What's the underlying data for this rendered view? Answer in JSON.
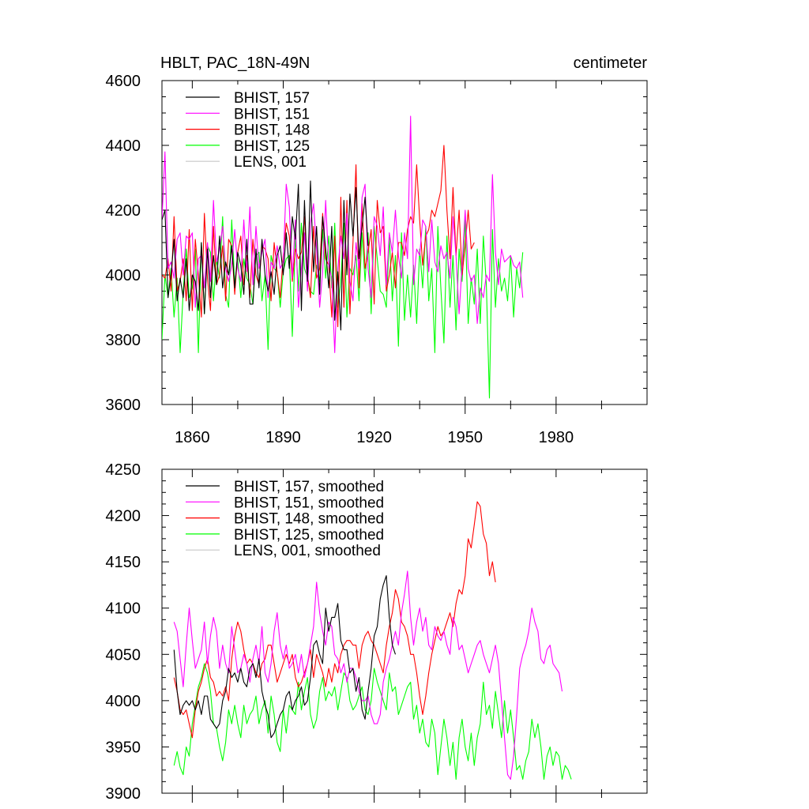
{
  "header": {
    "title": "HBLT, PAC_18N-49N",
    "units": "centimeter"
  },
  "colors": {
    "BHIST_157": "#000000",
    "BHIST_151": "#ff00ff",
    "BHIST_148": "#ff0000",
    "BHIST_125": "#00ff00",
    "LENS_001": "#c8c8c8"
  },
  "chart_data": [
    {
      "type": "line",
      "title": "HBLT, PAC_18N-49N",
      "units_label": "centimeter",
      "xlim": [
        1850,
        2010
      ],
      "ylim": [
        3600,
        4600
      ],
      "x_ticks": [
        1860,
        1890,
        1920,
        1950,
        1980
      ],
      "y_ticks": [
        3600,
        3800,
        4000,
        4200,
        4400,
        4600
      ],
      "grid": false,
      "legend_position": "top-left",
      "legend": [
        "BHIST, 157",
        "BHIST, 151",
        "BHIST, 148",
        "BHIST, 125",
        "LENS, 001"
      ],
      "series": [
        {
          "name": "BHIST, 157",
          "color": "#000000",
          "x_start": 1850,
          "values": [
            4170,
            4200,
            3930,
            4000,
            4110,
            3920,
            3990,
            3930,
            4050,
            3890,
            4000,
            3980,
            3890,
            4100,
            3880,
            4080,
            3930,
            4060,
            3970,
            4120,
            3960,
            4040,
            4000,
            4090,
            3960,
            4070,
            4030,
            3940,
            4110,
            3910,
            3910,
            4080,
            3960,
            4110,
            4000,
            3950,
            4010,
            3940,
            4060,
            4090,
            4000,
            4130,
            4020,
            4180,
            4110,
            4280,
            3890,
            4230,
            3980,
            4290,
            4010,
            4150,
            3940,
            4180,
            4080,
            3960,
            4150,
            3860,
            4010,
            3830,
            4230,
            4000,
            4250,
            4120,
            4270,
            4050,
            4150,
            4240,
            4090
          ]
        },
        {
          "name": "BHIST, 151",
          "color": "#ff00ff",
          "x_start": 1850,
          "values": [
            4170,
            4380,
            4020,
            4040,
            3990,
            4110,
            4130,
            4000,
            4120,
            4110,
            4130,
            3900,
            4050,
            4060,
            3960,
            4100,
            3980,
            4230,
            4040,
            4080,
            4150,
            4020,
            3980,
            4030,
            4140,
            4020,
            3980,
            4170,
            4010,
            4210,
            3970,
            4150,
            4020,
            4070,
            4110,
            3930,
            4040,
            4020,
            4090,
            4020,
            4040,
            4280,
            4210,
            3990,
            4170,
            3900,
            4020,
            4130,
            3950,
            4160,
            4220,
            4080,
            3900,
            4010,
            4230,
            4030,
            3990,
            3760,
            4020,
            4120,
            4050,
            4190,
            3980,
            3920,
            4100,
            4020,
            4240,
            4280,
            4020,
            3930,
            4180,
            4150,
            4060,
            4210,
            3970,
            4130,
            4070,
            4200,
            4060,
            3990,
            4130,
            4050,
            4490,
            3970,
            4080,
            4060,
            4170,
            4150,
            4010,
            4170,
            4040,
            4010,
            4090,
            4050,
            4070,
            3990,
            4180,
            4060,
            3880,
            4030,
            4200,
            4020,
            3980,
            4000,
            3850,
            3960,
            3930,
            4000,
            3980,
            4310,
            4070,
            3970,
            4080,
            4040,
            4050,
            4060,
            4030,
            4020,
            4040,
            3930
          ]
        },
        {
          "name": "BHIST, 148",
          "color": "#ff0000",
          "x_start": 1850,
          "values": [
            4000,
            3990,
            4050,
            3950,
            4180,
            3950,
            3980,
            4050,
            3920,
            4140,
            3890,
            4110,
            4000,
            3870,
            4190,
            3990,
            3890,
            4150,
            3970,
            4000,
            4090,
            3920,
            4110,
            4090,
            3940,
            4070,
            4120,
            3970,
            4060,
            3930,
            4110,
            4000,
            3970,
            4090,
            4080,
            4050,
            3920,
            4100,
            4010,
            3930,
            4060,
            4160,
            4120,
            3980,
            4080,
            4050,
            4070,
            4180,
            4000,
            3930,
            4150,
            3990,
            4020,
            4190,
            4050,
            4030,
            3870,
            4120,
            3840,
            4240,
            3900,
            4230,
            3880,
            4100,
            4340,
            3960,
            4220,
            4020,
            4070,
            4140,
            3910,
            4230,
            4130,
            4150,
            3950,
            4000,
            4070,
            3960,
            4100,
            4100,
            4060,
            4140,
            4180,
            4160,
            4340,
            4170,
            4030,
            4120,
            4140,
            4200,
            4180,
            4220,
            4260,
            4400,
            4200,
            4050,
            4270,
            4060,
            4200,
            4000,
            4090,
            4200,
            4080,
            4100
          ]
        },
        {
          "name": "BHIST, 125",
          "color": "#00ff00",
          "x_start": 1850,
          "values": [
            3800,
            4000,
            3930,
            4020,
            3870,
            3990,
            3760,
            3950,
            4080,
            3930,
            3960,
            4080,
            3760,
            4100,
            3880,
            4090,
            4070,
            3920,
            4050,
            3990,
            4180,
            3940,
            3900,
            4170,
            3970,
            4050,
            3930,
            4050,
            3990,
            3970,
            3910,
            4060,
            4070,
            3920,
            4000,
            3770,
            4060,
            4020,
            4010,
            3900,
            4010,
            4050,
            4060,
            3810,
            4120,
            3950,
            4160,
            4020,
            3990,
            3950,
            3940,
            4030,
            3980,
            4140,
            3990,
            4120,
            3960,
            4160,
            3900,
            3980,
            4160,
            3870,
            4020,
            4000,
            4060,
            3920,
            4130,
            3980,
            4130,
            3880,
            4150,
            4050,
            3950,
            3940,
            3900,
            4120,
            3920,
            4060,
            3780,
            4130,
            3860,
            4000,
            3870,
            4030,
            3850,
            4080,
            3960,
            4150,
            3920,
            4020,
            3760,
            4150,
            3960,
            3790,
            4120,
            3900,
            4060,
            3830,
            4080,
            3980,
            4170,
            3850,
            3990,
            3910,
            4080,
            3850,
            4120,
            3970,
            3620,
            4140,
            3900,
            4050,
            3950,
            3990,
            3920,
            4060,
            3870,
            4020,
            3960,
            4070
          ]
        }
      ]
    },
    {
      "type": "line",
      "xlim": [
        1850,
        2010
      ],
      "ylim": [
        3900,
        4250
      ],
      "y_ticks": [
        3900,
        3950,
        4000,
        4050,
        4100,
        4150,
        4200,
        4250
      ],
      "grid": false,
      "legend_position": "top-left",
      "legend": [
        "BHIST, 157, smoothed",
        "BHIST, 151, smoothed",
        "BHIST, 148, smoothed",
        "BHIST, 125, smoothed",
        "LENS, 001, smoothed"
      ],
      "series": [
        {
          "name": "BHIST, 157, smoothed",
          "color": "#000000",
          "x_start": 1854,
          "values": [
            4055,
            4010,
            3985,
            3995,
            4000,
            3995,
            4000,
            3990,
            4000,
            3985,
            4005,
            4005,
            3980,
            3975,
            3970,
            3975,
            4000,
            4010,
            4035,
            4025,
            4030,
            4020,
            4035,
            4020,
            4015,
            4035,
            4040,
            4025,
            4045,
            4010,
            3995,
            3985,
            3960,
            3965,
            3975,
            3985,
            3990,
            4005,
            4010,
            3990,
            4000,
            4005,
            4015,
            3995,
            4000,
            4025,
            4060,
            4065,
            4050,
            4040,
            4100,
            4075,
            4090,
            4090,
            4105,
            4065,
            4055,
            4055,
            4030,
            4035,
            4010,
            4025,
            3990,
            3980,
            4010,
            4035,
            4070,
            4080,
            4110,
            4125,
            4135,
            4090,
            4060,
            4050
          ]
        },
        {
          "name": "BHIST, 151, smoothed",
          "color": "#ff00ff",
          "x_start": 1854,
          "values": [
            4085,
            4075,
            4045,
            4015,
            4060,
            4100,
            4065,
            4035,
            4045,
            4055,
            4085,
            4040,
            4070,
            4090,
            4075,
            4035,
            4060,
            4040,
            4030,
            4080,
            4055,
            4030,
            4035,
            4050,
            4040,
            4020,
            4045,
            4060,
            4040,
            4080,
            4030,
            4020,
            4040,
            4075,
            4095,
            4060,
            4045,
            4060,
            4035,
            4040,
            4050,
            4030,
            4050,
            4025,
            4040,
            4060,
            4080,
            4128,
            4095,
            4075,
            4060,
            4085,
            4080,
            4050,
            4045,
            4030,
            4040,
            4020,
            4035,
            4035,
            4025,
            4010,
            4000,
            4000,
            4005,
            3985,
            3975,
            3975,
            3985,
            4020,
            4035,
            4045,
            4060,
            4075,
            4060,
            4095,
            4115,
            4140,
            4090,
            4060,
            4085,
            4100,
            4075,
            4090,
            4060,
            4055,
            4080,
            4070,
            4065,
            4075,
            4060,
            4050,
            4090,
            4080,
            4055,
            4060,
            4045,
            4030,
            4040,
            4050,
            4060,
            4065,
            4050,
            4040,
            4030,
            4045,
            4060,
            4040,
            4000,
            3960,
            3920,
            3915,
            3940,
            3985,
            4035,
            4050,
            4060,
            4075,
            4100,
            4085,
            4075,
            4045,
            4040,
            4055,
            4060,
            4040,
            4035,
            4030,
            4010
          ]
        },
        {
          "name": "BHIST, 148, smoothed",
          "color": "#ff0000",
          "x_start": 1854,
          "values": [
            4025,
            4010,
            3990,
            3985,
            3990,
            3975,
            3960,
            3990,
            4010,
            4020,
            4035,
            4045,
            4025,
            4020,
            4005,
            4010,
            4005,
            4015,
            4000,
            4045,
            4070,
            4085,
            4075,
            4055,
            4040,
            4045,
            4040,
            4030,
            4025,
            4040,
            4045,
            4060,
            4060,
            4040,
            4020,
            4030,
            4040,
            4050,
            4040,
            4050,
            4025,
            4015,
            4020,
            4030,
            4040,
            4055,
            4025,
            4050,
            4040,
            4030,
            4015,
            4035,
            4020,
            4040,
            4030,
            4050,
            4060,
            4065,
            4065,
            4060,
            4060,
            4035,
            4060,
            4070,
            4075,
            4065,
            4060,
            4050,
            4040,
            4030,
            4060,
            4080,
            4095,
            4120,
            4110,
            4085,
            4080,
            4070,
            4050,
            4050,
            4030,
            4005,
            3985,
            4005,
            4030,
            4050,
            4065,
            4080,
            4070,
            4075,
            4085,
            4095,
            4080,
            4105,
            4120,
            4115,
            4135,
            4175,
            4165,
            4190,
            4215,
            4210,
            4180,
            4170,
            4135,
            4150,
            4128
          ]
        },
        {
          "name": "BHIST, 125, smoothed",
          "color": "#00ff00",
          "x_start": 1854,
          "values": [
            3930,
            3945,
            3928,
            3920,
            3950,
            3940,
            3975,
            3995,
            4015,
            4025,
            4040,
            4030,
            4010,
            3975,
            3970,
            3950,
            3935,
            3955,
            3990,
            3975,
            3995,
            3975,
            3960,
            3995,
            3975,
            3985,
            3990,
            4005,
            3975,
            3990,
            4000,
            3965,
            4005,
            3985,
            3955,
            3945,
            3990,
            3965,
            3995,
            3990,
            3985,
            4020,
            3990,
            4010,
            4025,
            3985,
            3970,
            3980,
            4010,
            4025,
            4000,
            4010,
            4005,
            4015,
            3990,
            4010,
            4030,
            4025,
            4000,
            3990,
            3995,
            4005,
            4015,
            3990,
            3985,
            4000,
            4035,
            4020,
            4010,
            4000,
            3990,
            4030,
            4010,
            4015,
            3985,
            3995,
            4005,
            4015,
            4020,
            3980,
            3995,
            3965,
            3980,
            3955,
            3950,
            3980,
            3965,
            3920,
            3950,
            3980,
            3960,
            3930,
            3955,
            3915,
            3960,
            3980,
            3950,
            3935,
            3965,
            3930,
            3960,
            3975,
            4020,
            3985,
            3995,
            3970,
            4010,
            3985,
            3960,
            4000,
            3965,
            3990,
            3960,
            3925,
            3930,
            3915,
            3935,
            3945,
            3980,
            3960,
            3975,
            3950,
            3915,
            3940,
            3950,
            3930,
            3945,
            3940,
            3915,
            3930,
            3925,
            3915
          ]
        }
      ]
    }
  ]
}
